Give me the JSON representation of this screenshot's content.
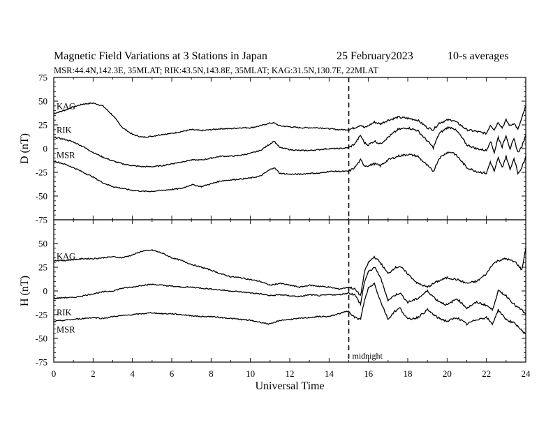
{
  "header": {
    "title": "Magnetic Field Variations at 3 Stations in Japan",
    "date": "25 February2023",
    "averaging": "10-s averages",
    "stations_line": "MSR:44.4N,142.3E, 35MLAT;  RIK:43.5N,143.8E, 35MLAT;  KAG:31.5N,130.7E, 22MLAT"
  },
  "chart_data": {
    "type": "line",
    "xlabel": "Universal Time",
    "xlim": [
      0,
      24
    ],
    "x_ticks": [
      0,
      2,
      4,
      6,
      8,
      10,
      12,
      14,
      16,
      18,
      20,
      22,
      24
    ],
    "marker": {
      "x": 15,
      "label": "midnight",
      "style": "dashed"
    },
    "grid": false,
    "panels": [
      {
        "ylabel": "D (nT)",
        "ylim": [
          -75,
          75
        ],
        "y_ticks": [
          75,
          50,
          25,
          0,
          -25,
          -50,
          -75
        ],
        "series": [
          {
            "name": "KAG",
            "x": [
              0,
              0.5,
              1,
              1.5,
              2,
              2.5,
              3,
              3.5,
              4,
              4.5,
              5,
              5.5,
              6,
              6.5,
              7,
              7.5,
              8,
              8.5,
              9,
              9.5,
              10,
              10.5,
              11,
              11.2,
              11.5,
              12,
              12.5,
              13,
              13.5,
              14,
              14.5,
              15,
              15.3,
              15.6,
              15.8,
              16,
              16.3,
              16.6,
              17,
              17.5,
              18,
              18.5,
              19,
              19.3,
              19.6,
              20,
              20.3,
              20.6,
              21,
              21.5,
              22,
              22.2,
              22.4,
              22.6,
              22.8,
              23,
              23.2,
              23.4,
              23.6,
              23.8,
              24
            ],
            "values": [
              37,
              40,
              44,
              47,
              48,
              45,
              35,
              22,
              15,
              12,
              13,
              15,
              16,
              18,
              20,
              19,
              20,
              21,
              21,
              22,
              22,
              24,
              27,
              27,
              24,
              23,
              22,
              22,
              22,
              21,
              20,
              20,
              22,
              25,
              22,
              24,
              28,
              26,
              30,
              33,
              32,
              30,
              22,
              20,
              27,
              30,
              30,
              26,
              20,
              18,
              16,
              25,
              20,
              28,
              22,
              30,
              24,
              27,
              20,
              32,
              45
            ]
          },
          {
            "name": "RIK",
            "x": [
              0,
              0.5,
              1,
              1.5,
              2,
              2.5,
              3,
              3.5,
              4,
              4.5,
              5,
              5.5,
              6,
              6.5,
              7,
              7.5,
              8,
              8.5,
              9,
              9.5,
              10,
              10.5,
              11,
              11.2,
              11.5,
              12,
              12.5,
              13,
              13.5,
              14,
              14.5,
              15,
              15.3,
              15.6,
              15.8,
              16,
              16.3,
              16.6,
              17,
              17.5,
              18,
              18.5,
              19,
              19.3,
              19.6,
              20,
              20.3,
              20.6,
              21,
              21.5,
              22,
              22.2,
              22.4,
              22.6,
              22.8,
              23,
              23.2,
              23.4,
              23.6,
              23.8,
              24
            ],
            "values": [
              12,
              10,
              7,
              2,
              -4,
              -9,
              -13,
              -16,
              -18,
              -19,
              -19,
              -18,
              -16,
              -14,
              -12,
              -12,
              -10,
              -8,
              -8,
              -7,
              -5,
              -2,
              5,
              8,
              1,
              -1,
              -2,
              -2,
              -1,
              0,
              0,
              1,
              5,
              14,
              6,
              4,
              8,
              5,
              12,
              20,
              22,
              19,
              8,
              1,
              16,
              22,
              22,
              16,
              4,
              0,
              -2,
              8,
              -4,
              12,
              2,
              14,
              0,
              10,
              -4,
              2,
              14
            ]
          },
          {
            "name": "MSR",
            "x": [
              0,
              0.5,
              1,
              1.5,
              2,
              2.5,
              3,
              3.5,
              4,
              4.5,
              5,
              5.5,
              6,
              6.5,
              7,
              7.5,
              8,
              8.5,
              9,
              9.5,
              10,
              10.5,
              11,
              11.2,
              11.5,
              12,
              12.5,
              13,
              13.5,
              14,
              14.5,
              15,
              15.3,
              15.6,
              15.8,
              16,
              16.3,
              16.6,
              17,
              17.5,
              18,
              18.5,
              19,
              19.3,
              19.6,
              20,
              20.3,
              20.6,
              21,
              21.5,
              22,
              22.2,
              22.4,
              22.6,
              22.8,
              23,
              23.2,
              23.4,
              23.6,
              23.8,
              24
            ],
            "values": [
              -13,
              -16,
              -20,
              -25,
              -30,
              -36,
              -40,
              -42,
              -44,
              -45,
              -45,
              -44,
              -43,
              -42,
              -38,
              -40,
              -37,
              -34,
              -33,
              -32,
              -31,
              -29,
              -22,
              -20,
              -26,
              -27,
              -27,
              -26,
              -26,
              -24,
              -24,
              -24,
              -20,
              -12,
              -18,
              -18,
              -16,
              -18,
              -12,
              -8,
              -6,
              -8,
              -18,
              -24,
              -10,
              -4,
              -4,
              -10,
              -20,
              -24,
              -26,
              -14,
              -24,
              -10,
              -20,
              -8,
              -22,
              -10,
              -26,
              -20,
              -8
            ]
          }
        ]
      },
      {
        "ylabel": "H (nT)",
        "ylim": [
          -75,
          75
        ],
        "y_ticks": [
          75,
          50,
          25,
          0,
          -25,
          -50,
          -75
        ],
        "series": [
          {
            "name": "KAG",
            "x": [
              0,
              0.5,
              1,
              1.5,
              2,
              2.5,
              3,
              3.5,
              4,
              4.5,
              5,
              5.5,
              6,
              6.5,
              7,
              7.5,
              8,
              8.5,
              9,
              9.5,
              10,
              10.5,
              11,
              11.5,
              12,
              12.5,
              13,
              13.5,
              14,
              14.5,
              15,
              15.3,
              15.6,
              15.8,
              16,
              16.3,
              16.6,
              17,
              17.3,
              17.6,
              18,
              18.5,
              19,
              19.5,
              20,
              20.5,
              21,
              21.5,
              22,
              22.3,
              22.6,
              23,
              23.5,
              23.8,
              24
            ],
            "values": [
              32,
              32,
              33,
              34,
              34,
              35,
              36,
              35,
              38,
              42,
              43,
              40,
              35,
              32,
              28,
              25,
              22,
              18,
              15,
              14,
              12,
              10,
              6,
              8,
              6,
              4,
              6,
              5,
              4,
              2,
              4,
              2,
              -5,
              20,
              30,
              36,
              30,
              18,
              24,
              26,
              18,
              8,
              4,
              10,
              14,
              12,
              8,
              10,
              18,
              28,
              32,
              34,
              30,
              22,
              45
            ]
          },
          {
            "name": "RIK",
            "x": [
              0,
              0.5,
              1,
              1.5,
              2,
              2.5,
              3,
              3.5,
              4,
              4.5,
              5,
              5.5,
              6,
              6.5,
              7,
              7.5,
              8,
              8.5,
              9,
              9.5,
              10,
              10.5,
              11,
              11.5,
              12,
              12.5,
              13,
              13.5,
              14,
              14.5,
              15,
              15.3,
              15.6,
              15.8,
              16,
              16.3,
              16.6,
              17,
              17.3,
              17.6,
              18,
              18.5,
              19,
              19.5,
              20,
              20.5,
              21,
              21.5,
              22,
              22.3,
              22.6,
              23,
              23.5,
              23.8,
              24
            ],
            "values": [
              -8,
              -7,
              -7,
              -5,
              -3,
              -1,
              0,
              3,
              4,
              6,
              7,
              6,
              5,
              4,
              4,
              3,
              2,
              1,
              0,
              -1,
              -2,
              -3,
              -5,
              -4,
              -5,
              -6,
              -4,
              -5,
              -4,
              -4,
              -2,
              -4,
              -14,
              10,
              20,
              25,
              15,
              -10,
              -5,
              -2,
              -12,
              -8,
              0,
              -10,
              -15,
              -8,
              -18,
              -12,
              -15,
              -20,
              0,
              -5,
              -16,
              -20,
              -25
            ]
          },
          {
            "name": "MSR",
            "x": [
              0,
              0.5,
              1,
              1.5,
              2,
              2.5,
              3,
              3.5,
              4,
              4.5,
              5,
              5.5,
              6,
              6.5,
              7,
              7.5,
              8,
              8.5,
              9,
              9.5,
              10,
              10.5,
              11,
              11.5,
              12,
              12.5,
              13,
              13.5,
              14,
              14.5,
              15,
              15.3,
              15.6,
              15.8,
              16,
              16.3,
              16.6,
              17,
              17.3,
              17.6,
              18,
              18.5,
              19,
              19.5,
              20,
              20.5,
              21,
              21.5,
              22,
              22.3,
              22.6,
              23,
              23.5,
              23.8,
              24
            ],
            "values": [
              -32,
              -31,
              -30,
              -29,
              -28,
              -29,
              -27,
              -26,
              -25,
              -24,
              -23,
              -24,
              -24,
              -25,
              -26,
              -27,
              -27,
              -28,
              -29,
              -30,
              -31,
              -33,
              -35,
              -31,
              -30,
              -29,
              -28,
              -27,
              -27,
              -24,
              -21,
              -28,
              -30,
              -10,
              3,
              8,
              -10,
              -30,
              -22,
              -18,
              -30,
              -28,
              -20,
              -28,
              -32,
              -28,
              -35,
              -30,
              -28,
              -35,
              -20,
              -30,
              -35,
              -42,
              -45
            ]
          }
        ]
      }
    ]
  }
}
